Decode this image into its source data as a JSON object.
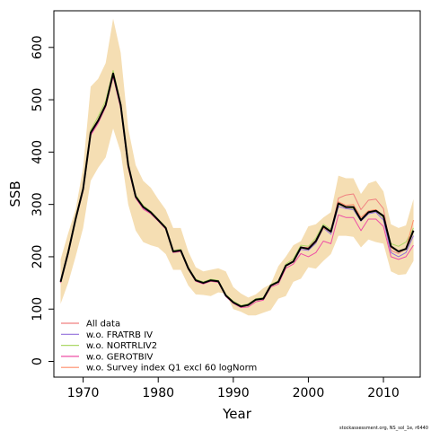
{
  "chart_data": {
    "type": "line",
    "xlabel": "Year",
    "ylabel": "SSB",
    "xlim": [
      1966.1,
      2014.9
    ],
    "ylim": [
      -30,
      670
    ],
    "x_ticks": [
      1970,
      1980,
      1990,
      2000,
      2010
    ],
    "y_ticks": [
      0,
      100,
      200,
      300,
      400,
      500,
      600
    ],
    "legend_position": "bottom-left",
    "footer_text": "stockassessment.org, NS_sol_1e, r6440",
    "band": {
      "color": "#F5DEB3",
      "x": [
        1967,
        1968,
        1969,
        1970,
        1971,
        1972,
        1973,
        1974,
        1975,
        1976,
        1977,
        1978,
        1979,
        1980,
        1981,
        1982,
        1983,
        1984,
        1985,
        1986,
        1987,
        1988,
        1989,
        1990,
        1991,
        1992,
        1993,
        1994,
        1995,
        1996,
        1997,
        1998,
        1999,
        2000,
        2001,
        2002,
        2003,
        2004,
        2005,
        2006,
        2007,
        2008,
        2009,
        2010,
        2011,
        2012,
        2013,
        2014
      ],
      "lower": [
        110,
        150,
        200,
        255,
        345,
        370,
        390,
        445,
        400,
        300,
        250,
        228,
        222,
        218,
        205,
        175,
        175,
        145,
        128,
        127,
        125,
        132,
        130,
        100,
        95,
        88,
        88,
        93,
        98,
        120,
        125,
        152,
        158,
        180,
        177,
        192,
        205,
        240,
        240,
        238,
        218,
        233,
        228,
        225,
        172,
        165,
        167,
        192
      ],
      "upper": [
        195,
        245,
        290,
        370,
        525,
        540,
        570,
        655,
        590,
        445,
        375,
        345,
        332,
        310,
        290,
        255,
        255,
        210,
        180,
        172,
        175,
        178,
        172,
        142,
        130,
        122,
        128,
        140,
        148,
        182,
        200,
        222,
        230,
        258,
        262,
        275,
        285,
        355,
        350,
        350,
        320,
        340,
        345,
        325,
        262,
        255,
        260,
        310
      ]
    },
    "x": [
      1967,
      1968,
      1969,
      1970,
      1971,
      1972,
      1973,
      1974,
      1975,
      1976,
      1977,
      1978,
      1979,
      1980,
      1981,
      1982,
      1983,
      1984,
      1985,
      1986,
      1987,
      1988,
      1989,
      1990,
      1991,
      1992,
      1993,
      1994,
      1995,
      1996,
      1997,
      1998,
      1999,
      2000,
      2001,
      2002,
      2003,
      2004,
      2005,
      2006,
      2007,
      2008,
      2009,
      2010,
      2011,
      2012,
      2013,
      2014
    ],
    "series": [
      {
        "name": "All data",
        "color": "#F08080",
        "width": 1,
        "values": [
          152,
          208,
          272,
          330,
          440,
          462,
          492,
          550,
          490,
          375,
          315,
          295,
          285,
          270,
          255,
          210,
          212,
          178,
          155,
          150,
          155,
          153,
          126,
          113,
          105,
          108,
          118,
          120,
          145,
          152,
          183,
          192,
          218,
          218,
          232,
          258,
          248,
          312,
          318,
          320,
          290,
          308,
          310,
          292,
          212,
          206,
          216,
          250
        ]
      },
      {
        "name": "w.o. FRATRB IV",
        "color": "#9370DB",
        "width": 1,
        "values": [
          152,
          207,
          272,
          328,
          435,
          458,
          490,
          548,
          488,
          372,
          314,
          293,
          284,
          270,
          255,
          210,
          212,
          178,
          155,
          150,
          155,
          153,
          126,
          113,
          105,
          107,
          118,
          120,
          145,
          151,
          182,
          190,
          214,
          212,
          226,
          255,
          243,
          296,
          292,
          290,
          268,
          282,
          285,
          270,
          208,
          200,
          208,
          240
        ]
      },
      {
        "name": "w.o. NORTRLIV2",
        "color": "#ADD869",
        "width": 1,
        "values": [
          153,
          210,
          274,
          332,
          442,
          468,
          498,
          556,
          494,
          378,
          318,
          298,
          287,
          272,
          257,
          212,
          214,
          180,
          157,
          152,
          157,
          155,
          128,
          115,
          107,
          110,
          120,
          122,
          147,
          154,
          186,
          196,
          222,
          220,
          236,
          262,
          252,
          300,
          295,
          292,
          270,
          285,
          288,
          275,
          225,
          220,
          228,
          255
        ]
      },
      {
        "name": "w.o. GEROTBIV",
        "color": "#EE4FA5",
        "width": 1,
        "values": [
          150,
          205,
          270,
          326,
          432,
          455,
          486,
          544,
          484,
          370,
          312,
          291,
          282,
          268,
          253,
          208,
          210,
          176,
          153,
          148,
          153,
          151,
          124,
          111,
          103,
          104,
          114,
          117,
          142,
          148,
          178,
          186,
          206,
          200,
          208,
          230,
          225,
          280,
          275,
          275,
          250,
          272,
          272,
          258,
          200,
          195,
          200,
          222
        ]
      },
      {
        "name": "w.o. Survey index Q1 excl 60 logNorm",
        "color": "#FF8C69",
        "width": 1,
        "values": [
          152,
          208,
          273,
          330,
          438,
          460,
          490,
          549,
          489,
          374,
          315,
          294,
          285,
          270,
          255,
          210,
          212,
          178,
          155,
          150,
          155,
          153,
          126,
          113,
          105,
          108,
          118,
          120,
          145,
          152,
          183,
          191,
          218,
          215,
          228,
          255,
          248,
          305,
          298,
          300,
          275,
          288,
          290,
          278,
          218,
          210,
          215,
          270
        ]
      },
      {
        "name": "",
        "color": "#000000",
        "width": 2,
        "values": [
          152,
          208,
          272,
          330,
          437,
          460,
          490,
          550,
          490,
          375,
          315,
          295,
          285,
          270,
          255,
          210,
          212,
          178,
          155,
          150,
          155,
          153,
          126,
          113,
          105,
          108,
          118,
          120,
          145,
          152,
          183,
          191,
          218,
          215,
          230,
          258,
          248,
          302,
          295,
          295,
          270,
          285,
          288,
          278,
          220,
          210,
          215,
          250
        ]
      }
    ]
  }
}
